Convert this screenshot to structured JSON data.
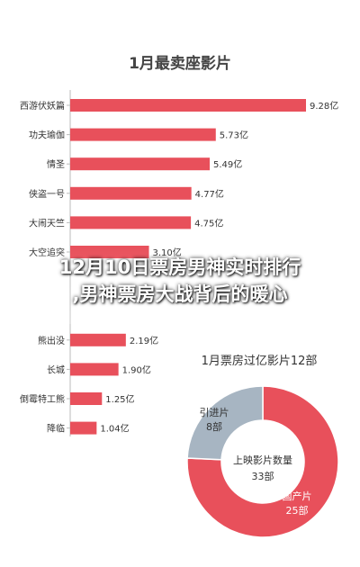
{
  "headline": {
    "line1": "12月10日票房男神实时排行",
    "line2": ",男神票房大战背后的暖心"
  },
  "chart_data": [
    {
      "type": "bar",
      "orientation": "horizontal",
      "title": "1月最卖座影片",
      "categories": [
        "西游伏妖篇",
        "功夫瑜伽",
        "情圣",
        "侠盗一号",
        "大闹天竺",
        "大空追突",
        "",
        "",
        "熊出没",
        "长城",
        "倒霉特工熊",
        "降临"
      ],
      "values": [
        9.28,
        5.73,
        5.49,
        4.77,
        4.75,
        3.1,
        null,
        null,
        2.19,
        1.9,
        1.25,
        1.04
      ],
      "labels": [
        "9.28亿",
        "5.73亿",
        "5.49亿",
        "4.77亿",
        "4.75亿",
        "3.10亿",
        "",
        "",
        "2.19亿",
        "1.90亿",
        "1.25亿",
        "1.04亿"
      ],
      "color": "#e8505b",
      "xlim": [
        0,
        9.28
      ]
    },
    {
      "type": "pie",
      "title": "1月票房过亿影片12部",
      "center_label": [
        "上映影片数量",
        "33部"
      ],
      "slices": [
        {
          "name": "引进片",
          "value": 8,
          "label": "8部",
          "color": "#a7b5c2"
        },
        {
          "name": "国产片",
          "value": 25,
          "label": "25部",
          "color": "#e8505b"
        }
      ]
    }
  ]
}
